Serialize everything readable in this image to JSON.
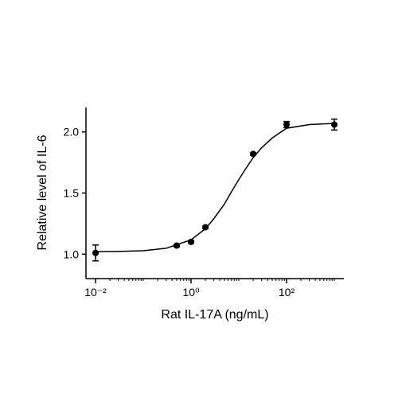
{
  "chart_data": {
    "type": "scatter",
    "x_label": "Rat IL-17A (ng/mL)",
    "y_label": "Relative level of IL-6",
    "log_x": true,
    "xlim": [
      0.0063,
      1585
    ],
    "xticks": [
      {
        "value": 0.01,
        "label": "10⁻²"
      },
      {
        "value": 1,
        "label": "10⁰"
      },
      {
        "value": 100,
        "label": "10²"
      }
    ],
    "xminorticks": [
      0.1,
      10,
      1000,
      0.02,
      0.03,
      0.04,
      0.05,
      0.06,
      0.07,
      0.08,
      0.09,
      0.2,
      0.3,
      0.4,
      0.5,
      0.6,
      0.7,
      0.8,
      0.9,
      2,
      3,
      4,
      5,
      6,
      7,
      8,
      9,
      20,
      30,
      40,
      50,
      60,
      70,
      80,
      90,
      200,
      300,
      400,
      500,
      600,
      700,
      800,
      900
    ],
    "ylim": [
      0.8,
      2.2
    ],
    "yticks": [
      {
        "value": 1.0,
        "label": "1.0"
      },
      {
        "value": 1.5,
        "label": "1.5"
      },
      {
        "value": 2.0,
        "label": "2.0"
      }
    ],
    "series": [
      {
        "kind": "points",
        "color": "#000000",
        "x": [
          0.01,
          0.5,
          1,
          2,
          20,
          100,
          1000
        ],
        "values": [
          1.01,
          1.07,
          1.1,
          1.22,
          1.82,
          2.06,
          2.06
        ],
        "errors": [
          0.065,
          0.01,
          0.01,
          0.01,
          0.01,
          0.025,
          0.045
        ]
      },
      {
        "kind": "fit",
        "color": "#000000",
        "x": [
          0.01,
          0.03,
          0.1,
          0.3,
          1,
          2,
          3,
          5,
          7,
          10,
          14,
          20,
          30,
          50,
          100,
          300,
          1000
        ],
        "values": [
          1.02,
          1.022,
          1.028,
          1.048,
          1.117,
          1.208,
          1.29,
          1.41,
          1.51,
          1.61,
          1.7,
          1.79,
          1.87,
          1.95,
          2.03,
          2.06,
          2.07
        ]
      }
    ]
  }
}
